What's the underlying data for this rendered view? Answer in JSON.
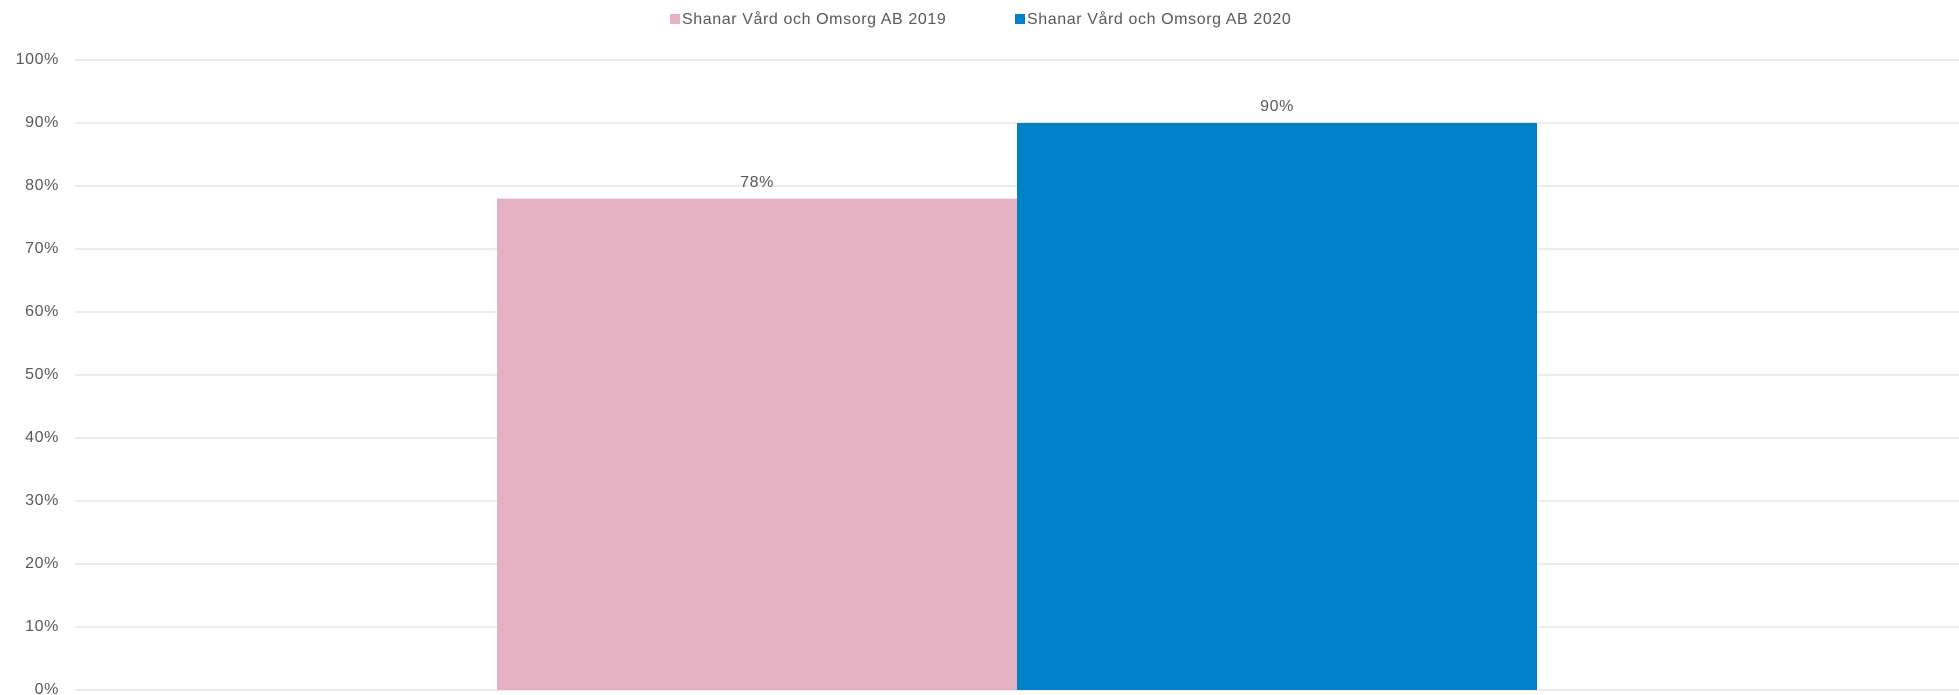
{
  "chart_data": {
    "type": "bar",
    "categories": [
      null
    ],
    "series": [
      {
        "name": "Shanar Vård och Omsorg AB 2019",
        "color": "#e4b0c2",
        "values": [
          78
        ],
        "value_labels": [
          "78%"
        ]
      },
      {
        "name": "Shanar Vård och Omsorg AB 2020",
        "color": "#0080c6",
        "values": [
          90
        ],
        "value_labels": [
          "90%"
        ]
      }
    ],
    "ylim": [
      0,
      100
    ],
    "yticks": [
      {
        "value": 0,
        "label": "0%"
      },
      {
        "value": 10,
        "label": "10%"
      },
      {
        "value": 20,
        "label": "20%"
      },
      {
        "value": 30,
        "label": "30%"
      },
      {
        "value": 40,
        "label": "40%"
      },
      {
        "value": 50,
        "label": "50%"
      },
      {
        "value": 60,
        "label": "60%"
      },
      {
        "value": 70,
        "label": "70%"
      },
      {
        "value": 80,
        "label": "80%"
      },
      {
        "value": 90,
        "label": "90%"
      },
      {
        "value": 100,
        "label": "100%"
      }
    ],
    "grid": true,
    "legend": "top"
  }
}
